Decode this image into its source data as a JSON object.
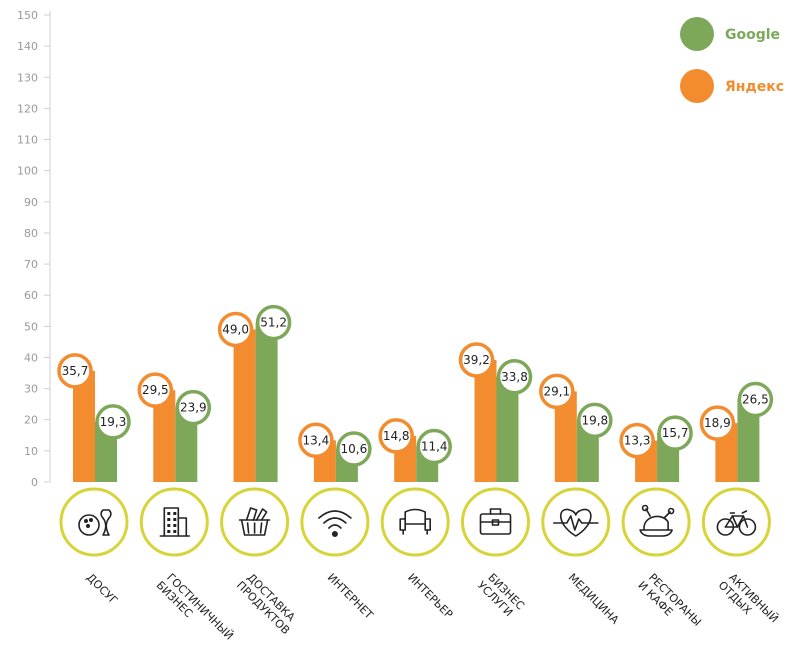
{
  "chart_data": {
    "type": "bar",
    "categories": [
      [
        "ДОСУГ"
      ],
      [
        "ГОСТИНИЧНЫЙ",
        "БИЗНЕС"
      ],
      [
        "ДОСТАВКА",
        "ПРОДУКТОВ"
      ],
      [
        "ИНТЕРНЕТ"
      ],
      [
        "ИНТЕРЬЕР"
      ],
      [
        "БИЗНЕС",
        "УСЛУГИ"
      ],
      [
        "МЕДИЦИНА"
      ],
      [
        "РЕСТОРАНЫ",
        "И КАФЕ"
      ],
      [
        "АКТИВНЫЙ",
        "ОТДЫХ"
      ]
    ],
    "category_icons": [
      "bowling-icon",
      "hotel-building-icon",
      "shopping-basket-icon",
      "wifi-icon",
      "armchair-icon",
      "briefcase-icon",
      "heartbeat-icon",
      "roast-chicken-icon",
      "bicycle-icon"
    ],
    "series": [
      {
        "name": "Яндекс",
        "color": "#f28c2e",
        "values": [
          35.7,
          29.5,
          49.0,
          13.4,
          14.8,
          39.2,
          29.1,
          13.3,
          18.9
        ],
        "labels": [
          "35,7",
          "29,5",
          "49,0",
          "13,4",
          "14,8",
          "39,2",
          "29,1",
          "13,3",
          "18,9"
        ]
      },
      {
        "name": "Google",
        "color": "#7da85a",
        "values": [
          19.3,
          23.9,
          51.2,
          10.6,
          11.4,
          33.8,
          19.8,
          15.7,
          26.5
        ],
        "labels": [
          "19,3",
          "23,9",
          "51,2",
          "10,6",
          "11,4",
          "33,8",
          "19,8",
          "15,7",
          "26,5"
        ]
      }
    ],
    "yticks": [
      "0",
      "10",
      "20",
      "30",
      "40",
      "50",
      "60",
      "70",
      "80",
      "90",
      "100",
      "110",
      "120",
      "130",
      "140",
      "150"
    ],
    "ylim": [
      0,
      150
    ],
    "legend_placement": "top-right",
    "icon_ring_color": "#d7d43a"
  }
}
